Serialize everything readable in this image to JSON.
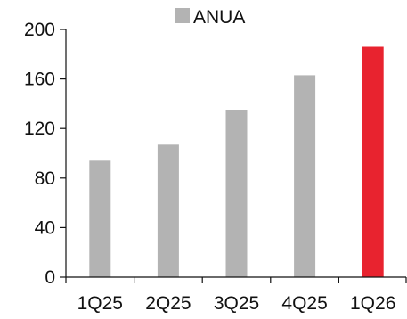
{
  "chart_data": {
    "type": "bar",
    "categories": [
      "1Q25",
      "2Q25",
      "3Q25",
      "4Q25",
      "1Q26"
    ],
    "series": [
      {
        "name": "ANUA",
        "values": [
          94,
          107,
          135,
          163,
          186
        ]
      }
    ],
    "ylim": [
      0,
      200
    ],
    "yticks": [
      0,
      40,
      80,
      120,
      160,
      200
    ],
    "grid": false,
    "legend_position": "top",
    "colors": {
      "bar": "#b3b3b3",
      "highlight": "#e8232f",
      "axis": "#111111"
    },
    "highlight_index": 4
  }
}
